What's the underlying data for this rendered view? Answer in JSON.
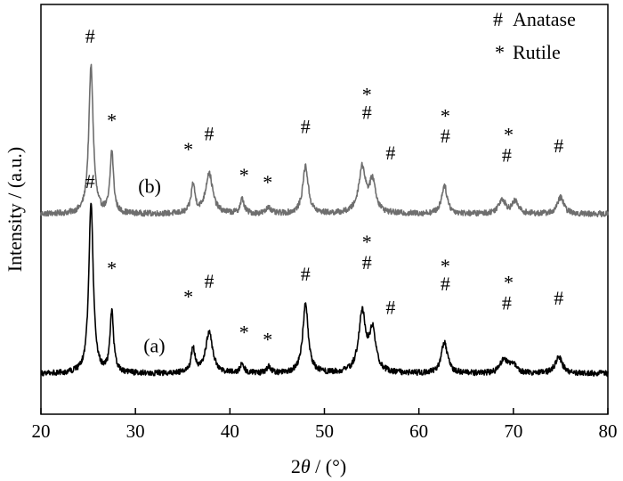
{
  "chart_data": {
    "type": "line",
    "title": "",
    "xlabel_prefix": "2",
    "xlabel_symbol": "θ",
    "xlabel_suffix": " / (°)",
    "ylabel": "Intensity / (a.u.)",
    "xlim": [
      20,
      80
    ],
    "xticks": [
      20,
      30,
      40,
      50,
      60,
      70,
      80
    ],
    "yticks_shown": false,
    "grid": false,
    "legend_location": "top-right",
    "legend": [
      {
        "symbol": "#",
        "label": "Anatase"
      },
      {
        "symbol": "*",
        "label": "Rutile"
      }
    ],
    "series": [
      {
        "name": "(b)",
        "color": "#6e6e6e",
        "baseline": 0.72,
        "noise": 0.012,
        "peaks": [
          {
            "x": 25.3,
            "h": 0.62,
            "w": 0.28,
            "phase": "anatase"
          },
          {
            "x": 27.5,
            "h": 0.26,
            "w": 0.22,
            "phase": "rutile"
          },
          {
            "x": 36.1,
            "h": 0.12,
            "w": 0.25,
            "phase": "rutile"
          },
          {
            "x": 37.8,
            "h": 0.17,
            "w": 0.45,
            "phase": "anatase"
          },
          {
            "x": 41.3,
            "h": 0.06,
            "w": 0.25,
            "phase": "rutile"
          },
          {
            "x": 44.1,
            "h": 0.03,
            "w": 0.25,
            "phase": "rutile"
          },
          {
            "x": 48.0,
            "h": 0.2,
            "w": 0.35,
            "phase": "anatase"
          },
          {
            "x": 54.0,
            "h": 0.19,
            "w": 0.45,
            "phase": "anatase+rutile"
          },
          {
            "x": 55.1,
            "h": 0.13,
            "w": 0.4,
            "phase": "anatase"
          },
          {
            "x": 62.7,
            "h": 0.12,
            "w": 0.35,
            "phase": "anatase+rutile"
          },
          {
            "x": 68.8,
            "h": 0.06,
            "w": 0.45,
            "phase": "anatase+rutile"
          },
          {
            "x": 70.2,
            "h": 0.05,
            "w": 0.4,
            "phase": "anatase"
          },
          {
            "x": 75.0,
            "h": 0.07,
            "w": 0.4,
            "phase": "anatase"
          }
        ]
      },
      {
        "name": "(a)",
        "color": "#000000",
        "baseline": 0.05,
        "noise": 0.012,
        "peaks": [
          {
            "x": 25.3,
            "h": 0.72,
            "w": 0.28,
            "phase": "anatase"
          },
          {
            "x": 27.5,
            "h": 0.26,
            "w": 0.22,
            "phase": "rutile"
          },
          {
            "x": 36.1,
            "h": 0.1,
            "w": 0.25,
            "phase": "rutile"
          },
          {
            "x": 37.8,
            "h": 0.17,
            "w": 0.45,
            "phase": "anatase"
          },
          {
            "x": 41.3,
            "h": 0.04,
            "w": 0.25,
            "phase": "rutile"
          },
          {
            "x": 44.1,
            "h": 0.03,
            "w": 0.25,
            "phase": "rutile"
          },
          {
            "x": 48.0,
            "h": 0.29,
            "w": 0.35,
            "phase": "anatase"
          },
          {
            "x": 54.0,
            "h": 0.25,
            "w": 0.45,
            "phase": "anatase+rutile"
          },
          {
            "x": 55.1,
            "h": 0.17,
            "w": 0.4,
            "phase": "anatase"
          },
          {
            "x": 62.7,
            "h": 0.13,
            "w": 0.4,
            "phase": "anatase+rutile"
          },
          {
            "x": 69.0,
            "h": 0.06,
            "w": 0.45,
            "phase": "anatase+rutile"
          },
          {
            "x": 70.0,
            "h": 0.04,
            "w": 0.4,
            "phase": "anatase"
          },
          {
            "x": 74.8,
            "h": 0.07,
            "w": 0.45,
            "phase": "anatase"
          }
        ]
      }
    ],
    "annotations": [
      {
        "text": "#",
        "x": 25.2,
        "y": 1.47
      },
      {
        "text": "*",
        "x": 27.5,
        "y": 1.13
      },
      {
        "text": "*",
        "x": 35.6,
        "y": 1.01
      },
      {
        "text": "#",
        "x": 37.8,
        "y": 1.06
      },
      {
        "text": "*",
        "x": 41.5,
        "y": 0.9
      },
      {
        "text": "*",
        "x": 44.0,
        "y": 0.87
      },
      {
        "text": "#",
        "x": 48.0,
        "y": 1.09
      },
      {
        "text": "*",
        "x": 54.5,
        "y": 1.24
      },
      {
        "text": "#",
        "x": 54.5,
        "y": 1.15
      },
      {
        "text": "#",
        "x": 57.0,
        "y": 0.98
      },
      {
        "text": "*",
        "x": 62.8,
        "y": 1.15
      },
      {
        "text": "#",
        "x": 62.8,
        "y": 1.05
      },
      {
        "text": "*",
        "x": 69.5,
        "y": 1.07
      },
      {
        "text": "#",
        "x": 69.3,
        "y": 0.97
      },
      {
        "text": "#",
        "x": 74.8,
        "y": 1.01
      },
      {
        "text": "#",
        "x": 25.2,
        "y": 0.86
      },
      {
        "text": "*",
        "x": 27.5,
        "y": 0.51
      },
      {
        "text": "*",
        "x": 35.6,
        "y": 0.39
      },
      {
        "text": "#",
        "x": 37.8,
        "y": 0.44
      },
      {
        "text": "*",
        "x": 41.5,
        "y": 0.24
      },
      {
        "text": "*",
        "x": 44.0,
        "y": 0.21
      },
      {
        "text": "#",
        "x": 48.0,
        "y": 0.47
      },
      {
        "text": "*",
        "x": 54.5,
        "y": 0.62
      },
      {
        "text": "#",
        "x": 54.5,
        "y": 0.52
      },
      {
        "text": "#",
        "x": 57.0,
        "y": 0.33
      },
      {
        "text": "*",
        "x": 62.8,
        "y": 0.52
      },
      {
        "text": "#",
        "x": 62.8,
        "y": 0.43
      },
      {
        "text": "*",
        "x": 69.5,
        "y": 0.45
      },
      {
        "text": "#",
        "x": 69.3,
        "y": 0.35
      },
      {
        "text": "#",
        "x": 74.8,
        "y": 0.37
      }
    ],
    "curve_labels": [
      {
        "text": "(b)",
        "x": 31.5,
        "y": 0.84
      },
      {
        "text": "(a)",
        "x": 32.0,
        "y": 0.17
      }
    ]
  }
}
